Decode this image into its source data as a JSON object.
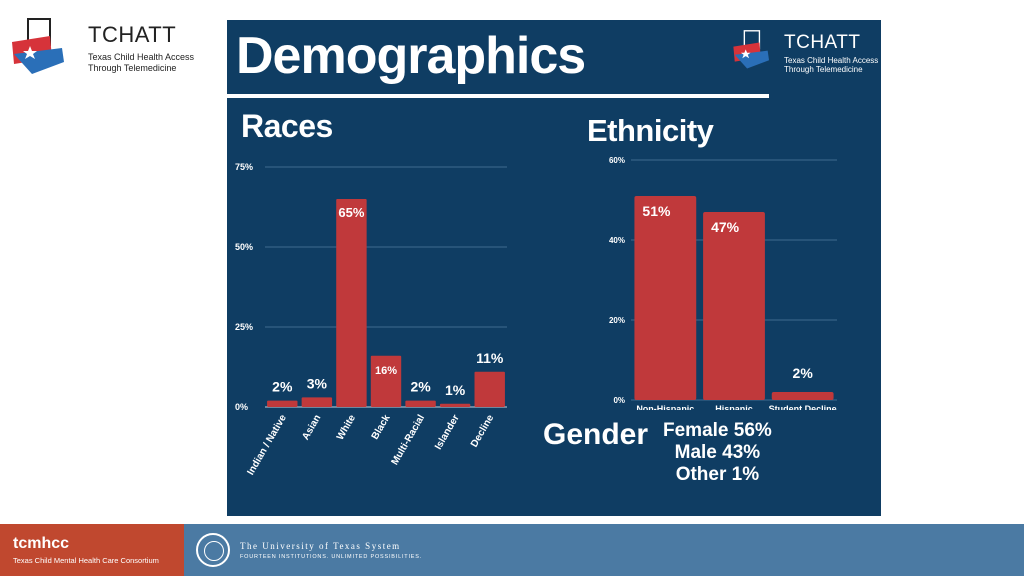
{
  "branding": {
    "logo_name": "TCHATT",
    "logo_sub_line1": "Texas Child Health Access",
    "logo_sub_line2": "Through Telemedicine",
    "colors": {
      "slide_bg": "#0f3d63",
      "bar": "#c0393b",
      "footer_red": "#c0482f",
      "footer_blue": "#4b7aa3"
    }
  },
  "slide": {
    "title": "Demographics",
    "races_title": "Races",
    "ethnicity_title": "Ethnicity",
    "gender_title": "Gender",
    "gender_items": [
      "Female 56%",
      "Male 43%",
      "Other 1%"
    ]
  },
  "chart_data": [
    {
      "type": "bar",
      "title": "Races",
      "categories": [
        "Indian / Native",
        "Asian",
        "White",
        "Black",
        "Multi-Racial",
        "Islander",
        "Decline"
      ],
      "values": [
        2,
        3,
        65,
        16,
        2,
        1,
        11
      ],
      "data_labels": [
        "2%",
        "3%",
        "65%",
        "16%",
        "2%",
        "1%",
        "11%"
      ],
      "ylim": [
        0,
        75
      ],
      "yticks": [
        0,
        25,
        50,
        75
      ],
      "ytick_labels": [
        "0%",
        "25%",
        "50%",
        "75%"
      ],
      "grid": true
    },
    {
      "type": "bar",
      "title": "Ethnicity",
      "categories": [
        "Non-Hispanic",
        "Hispanic",
        "Student Decline"
      ],
      "values": [
        51,
        47,
        2
      ],
      "data_labels": [
        "51%",
        "47%",
        "2%"
      ],
      "ylim": [
        0,
        60
      ],
      "yticks": [
        0,
        20,
        40,
        60
      ],
      "ytick_labels": [
        "0%",
        "20%",
        "40%",
        "60%"
      ],
      "grid": true
    }
  ],
  "footer": {
    "left_brand": "tcmhcc",
    "left_sub": "Texas Child Mental Health Care Consortium",
    "ut_name": "The University of Texas System",
    "ut_tagline": "FOURTEEN INSTITUTIONS. UNLIMITED POSSIBILITIES."
  }
}
